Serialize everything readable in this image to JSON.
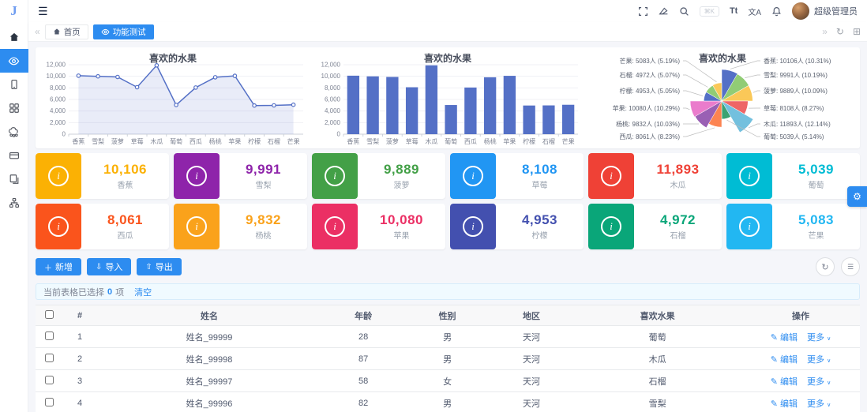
{
  "brand": {
    "logo_letter": "J"
  },
  "topbar": {
    "user_name": "超级管理员",
    "font_size_icon_text": "Tt",
    "translate_icon_text": "文A"
  },
  "tabbar": {
    "tabs": [
      {
        "label": "首页",
        "active": false
      },
      {
        "label": "功能测试",
        "active": true
      }
    ]
  },
  "chart_data": [
    {
      "type": "line",
      "title": "喜欢的水果",
      "categories": [
        "香蕉",
        "雪梨",
        "菠萝",
        "草莓",
        "木瓜",
        "葡萄",
        "西瓜",
        "杨桃",
        "苹果",
        "柠檬",
        "石榴",
        "芒果"
      ],
      "values": [
        10106,
        9991,
        9889,
        8108,
        11893,
        5039,
        8061,
        9832,
        10080,
        4953,
        4972,
        5083
      ],
      "ylim": [
        0,
        12000
      ],
      "yticks": [
        0,
        2000,
        4000,
        6000,
        8000,
        10000,
        12000
      ],
      "color": "#5470c6",
      "grid": true,
      "legend": "none"
    },
    {
      "type": "bar",
      "title": "喜欢的水果",
      "categories": [
        "香蕉",
        "雪梨",
        "菠萝",
        "草莓",
        "木瓜",
        "葡萄",
        "西瓜",
        "杨桃",
        "苹果",
        "柠檬",
        "石榴",
        "芒果"
      ],
      "values": [
        10106,
        9991,
        9889,
        8108,
        11893,
        5039,
        8061,
        9832,
        10080,
        4953,
        4972,
        5083
      ],
      "ylim": [
        0,
        12000
      ],
      "yticks": [
        0,
        2000,
        4000,
        6000,
        8000,
        10000,
        12000
      ],
      "color": "#5470c6",
      "grid": true,
      "legend": "none"
    },
    {
      "type": "pie",
      "subtype": "nightingale-rose",
      "title": "喜欢的水果",
      "items": [
        {
          "name": "香蕉",
          "value": 10106,
          "percent": "10.31%"
        },
        {
          "name": "雪梨",
          "value": 9991,
          "percent": "10.19%"
        },
        {
          "name": "菠萝",
          "value": 9889,
          "percent": "10.09%"
        },
        {
          "name": "草莓",
          "value": 8108,
          "percent": "8.27%"
        },
        {
          "name": "木瓜",
          "value": 11893,
          "percent": "12.14%"
        },
        {
          "name": "葡萄",
          "value": 5039,
          "percent": "5.14%"
        },
        {
          "name": "西瓜",
          "value": 8061,
          "percent": "8.23%"
        },
        {
          "name": "杨桃",
          "value": 9832,
          "percent": "10.03%"
        },
        {
          "name": "苹果",
          "value": 10080,
          "percent": "10.29%"
        },
        {
          "name": "柠檬",
          "value": 4953,
          "percent": "5.05%"
        },
        {
          "name": "石榴",
          "value": 4972,
          "percent": "5.07%"
        },
        {
          "name": "芒果",
          "value": 5083,
          "percent": "5.19%"
        }
      ],
      "unit_suffix": "人",
      "palette": [
        "#5470c6",
        "#91cc75",
        "#fac858",
        "#ee6666",
        "#73c0de",
        "#3ba272",
        "#fc8452",
        "#9a60b4",
        "#ea7ccc"
      ]
    }
  ],
  "stats": [
    {
      "label": "香蕉",
      "value": "10,106",
      "color": "#fbb104"
    },
    {
      "label": "雪梨",
      "value": "9,991",
      "color": "#8e24aa"
    },
    {
      "label": "菠萝",
      "value": "9,889",
      "color": "#43a047"
    },
    {
      "label": "草莓",
      "value": "8,108",
      "color": "#2196f3"
    },
    {
      "label": "木瓜",
      "value": "11,893",
      "color": "#ef4136"
    },
    {
      "label": "葡萄",
      "value": "5,039",
      "color": "#00bcd4"
    },
    {
      "label": "西瓜",
      "value": "8,061",
      "color": "#fa541c"
    },
    {
      "label": "杨桃",
      "value": "9,832",
      "color": "#faa21b"
    },
    {
      "label": "苹果",
      "value": "10,080",
      "color": "#eb2f64"
    },
    {
      "label": "柠檬",
      "value": "4,953",
      "color": "#4350af"
    },
    {
      "label": "石榴",
      "value": "4,972",
      "color": "#0aa679"
    },
    {
      "label": "芒果",
      "value": "5,083",
      "color": "#22b7f2"
    }
  ],
  "toolbar": {
    "add": "新增",
    "import": "导入",
    "export": "导出"
  },
  "selection_bar": {
    "prefix": "当前表格已选择",
    "count": "0",
    "unit": "项",
    "clear": "清空"
  },
  "table": {
    "headers": [
      "#",
      "姓名",
      "年龄",
      "性别",
      "地区",
      "喜欢水果",
      "操作"
    ],
    "rows": [
      {
        "index": "1",
        "name": "姓名_99999",
        "age": "28",
        "gender": "男",
        "region": "天河",
        "fruit": "葡萄"
      },
      {
        "index": "2",
        "name": "姓名_99998",
        "age": "87",
        "gender": "男",
        "region": "天河",
        "fruit": "木瓜"
      },
      {
        "index": "3",
        "name": "姓名_99997",
        "age": "58",
        "gender": "女",
        "region": "天河",
        "fruit": "石榴"
      },
      {
        "index": "4",
        "name": "姓名_99996",
        "age": "82",
        "gender": "男",
        "region": "天河",
        "fruit": "雪梨"
      }
    ],
    "actions": {
      "edit": "编辑",
      "more": "更多"
    }
  },
  "icons": {
    "hamburger": "☰",
    "collapse_left": "«",
    "collapse_right": "»",
    "tab_refresh": "↻",
    "tab_grid": "⊞",
    "add": "＋",
    "import": "⇩",
    "export": "⇧",
    "table_refresh": "↻",
    "table_columns": "☰",
    "edit": "✎",
    "caret_down": "∨",
    "gear": "⚙",
    "info": "i"
  }
}
